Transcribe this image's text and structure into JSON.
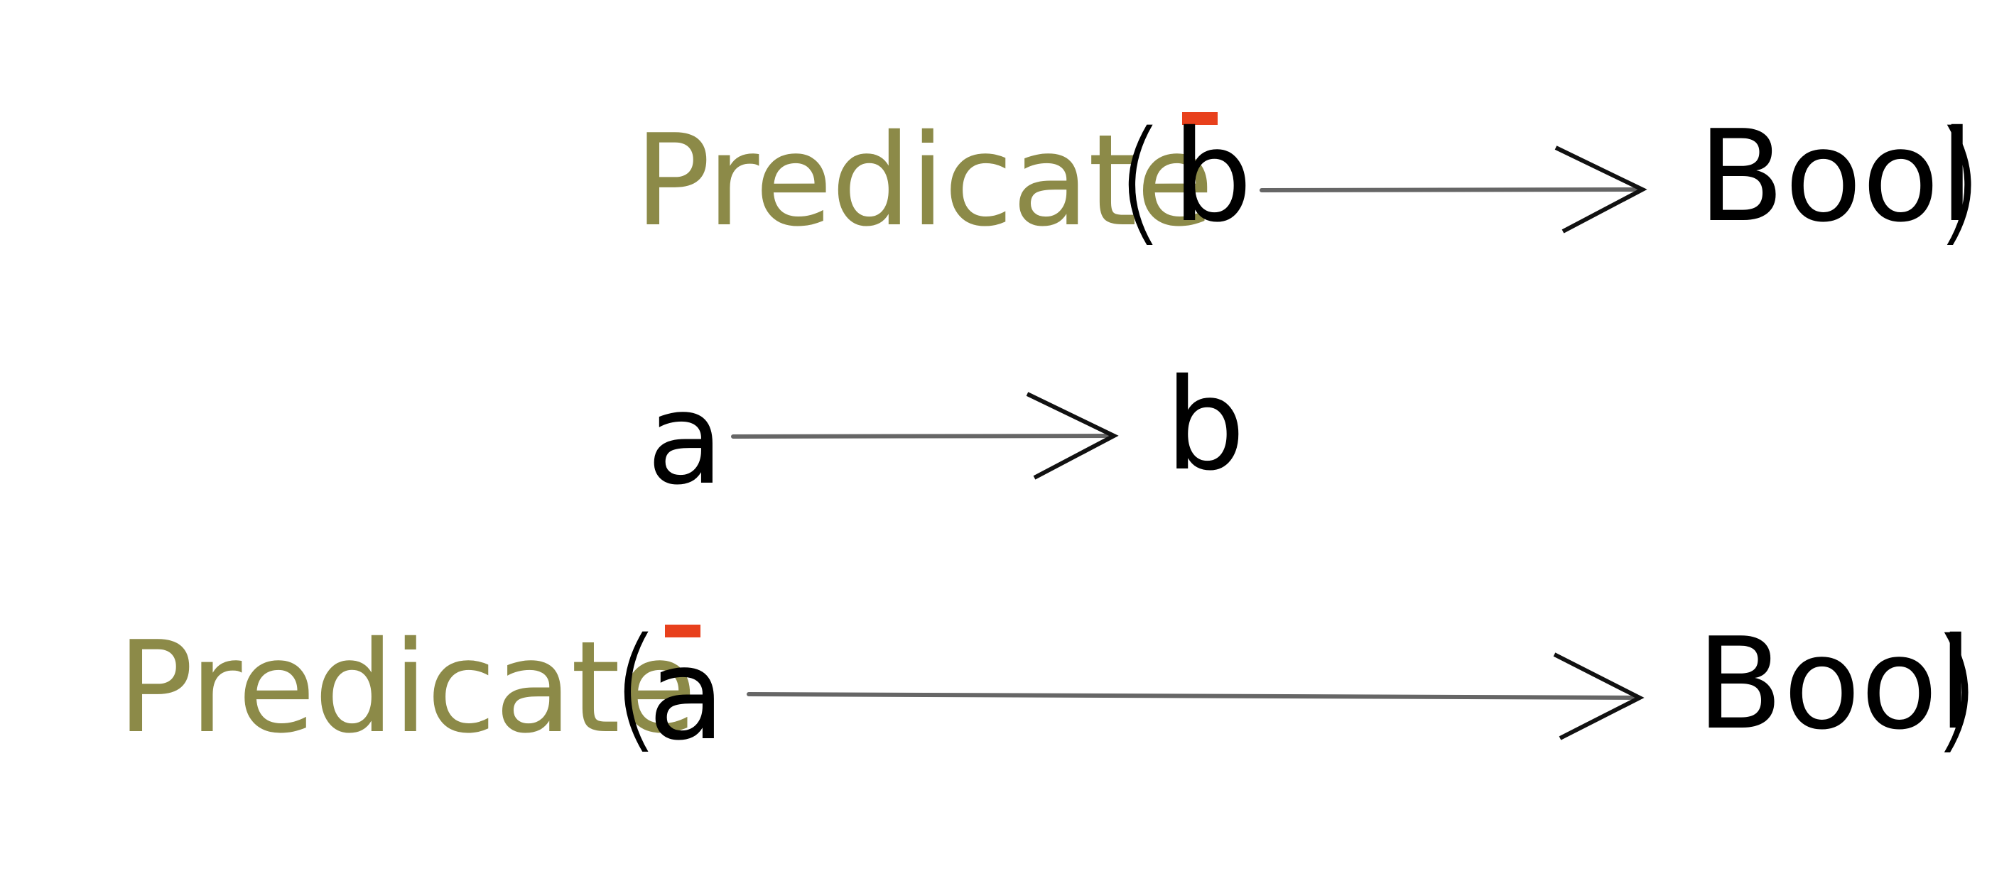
{
  "colors": {
    "predicate": "#8c8a48",
    "text": "#000000",
    "arrow_shaft": "#666666",
    "arrow_head": "#111111",
    "contravariance_mark": "#e8401c"
  },
  "rows": {
    "top": {
      "predicate": "Predicate",
      "open_paren": "(",
      "arg": "b",
      "result": "Bool",
      "close_paren": ")"
    },
    "middle": {
      "from": "a",
      "to": "b"
    },
    "bottom": {
      "predicate": "Predicate",
      "open_paren": "(",
      "arg": "a",
      "result": "Bool",
      "close_paren": ")"
    }
  }
}
